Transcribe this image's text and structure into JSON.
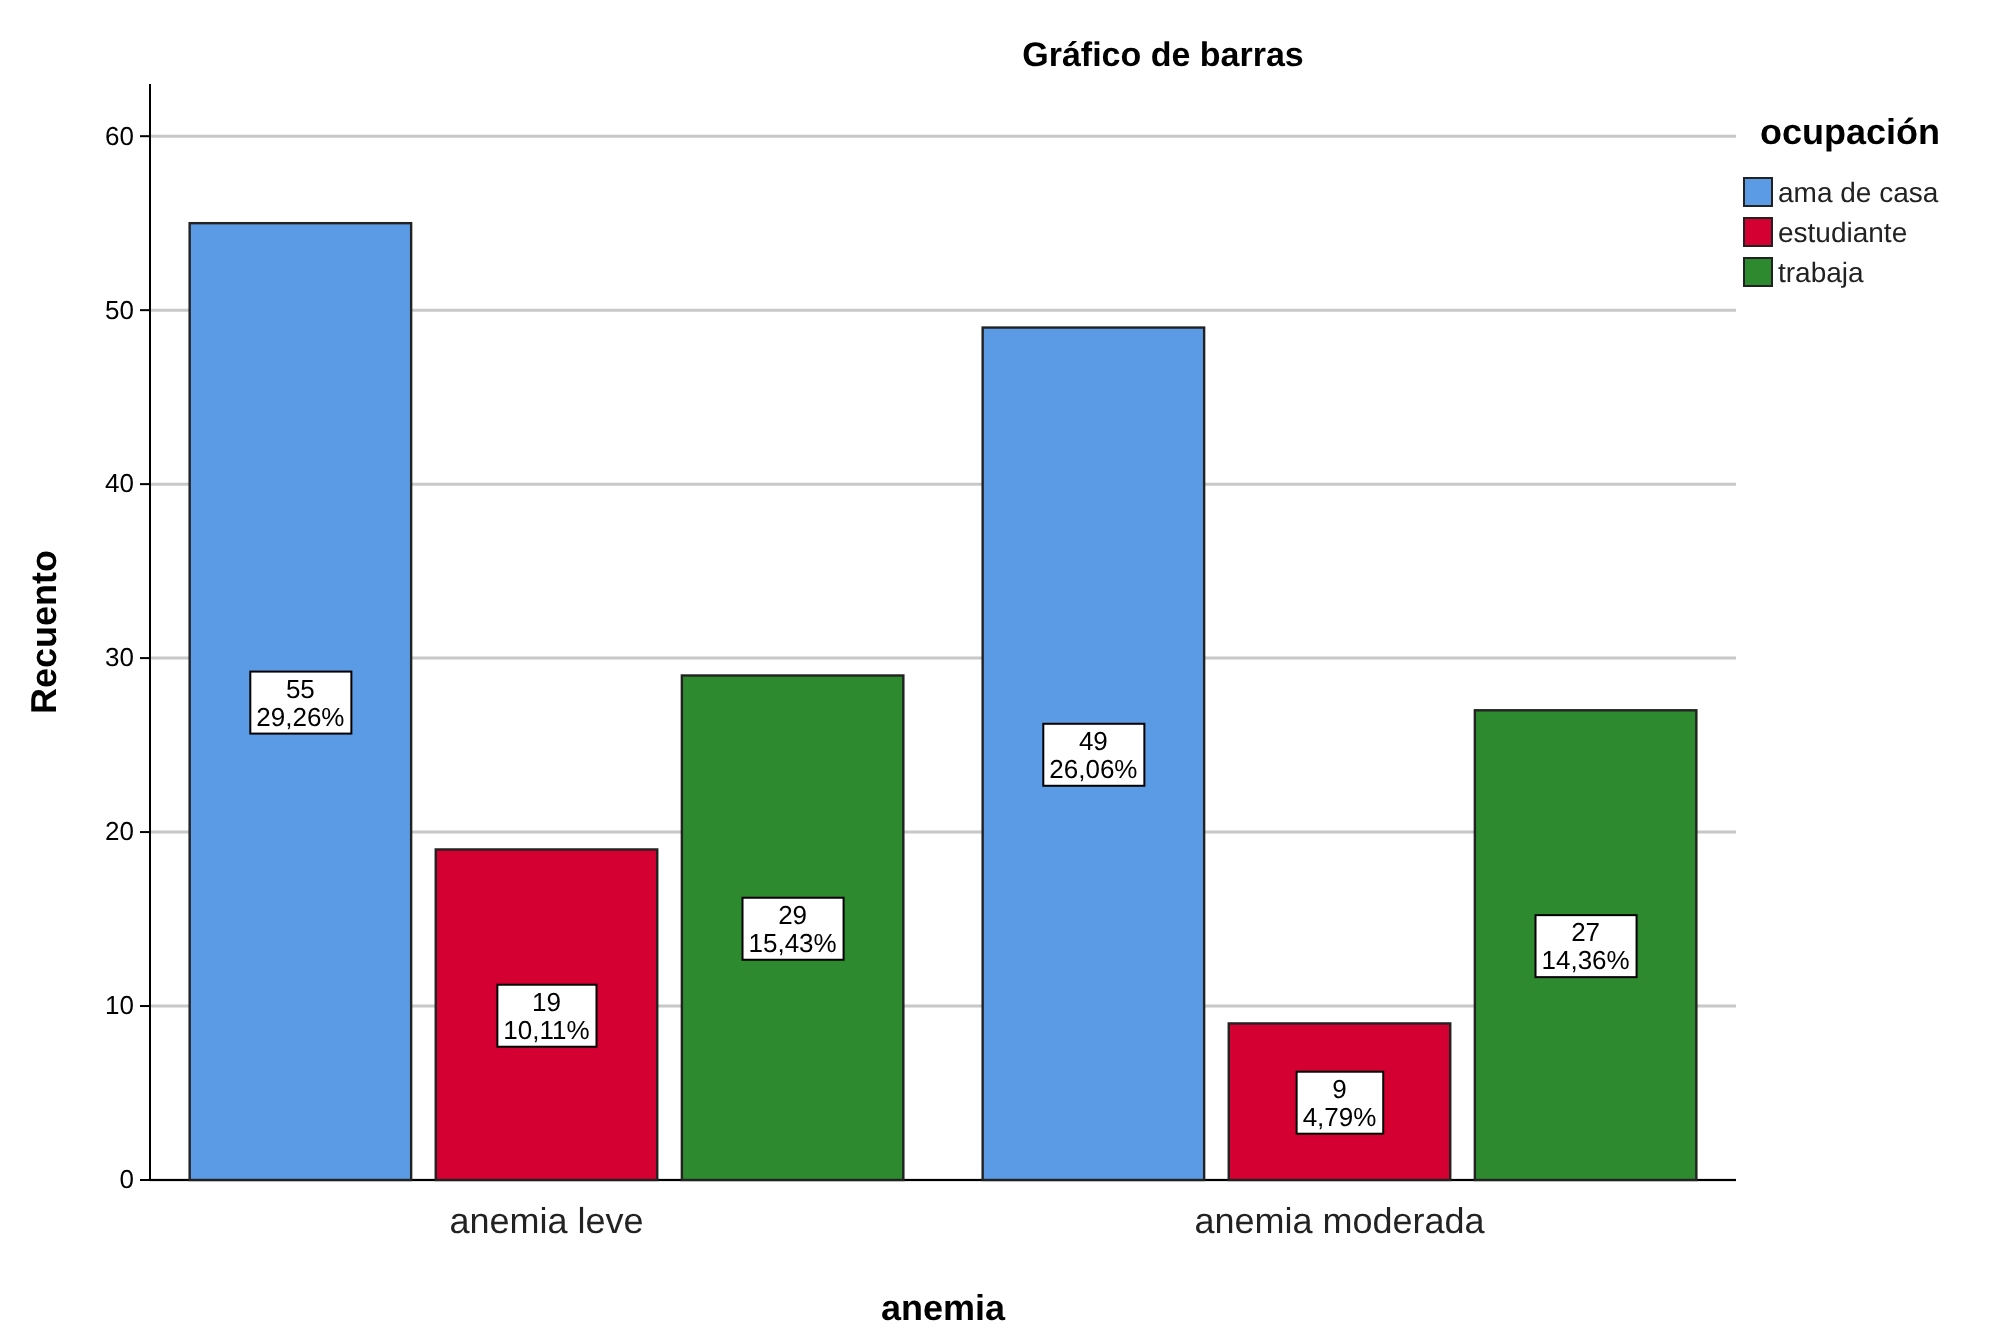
{
  "chart_data": {
    "type": "bar",
    "title": "Gráfico de barras",
    "xlabel": "anemia",
    "ylabel": "Recuento",
    "legend_title": "ocupación",
    "categories": [
      "anemia leve",
      "anemia moderada"
    ],
    "series": [
      {
        "name": "ama de casa",
        "color": "#5b9be5",
        "values": [
          55,
          49
        ],
        "value_labels": [
          "55\n29,26%",
          "49\n26,06%"
        ]
      },
      {
        "name": "estudiante",
        "color": "#d40032",
        "values": [
          19,
          9
        ],
        "value_labels": [
          "19\n10,11%",
          "9\n4,79%"
        ]
      },
      {
        "name": "trabaja",
        "color": "#2e8a2e",
        "values": [
          29,
          27
        ],
        "value_labels": [
          "29\n15,43%",
          "27\n14,36%"
        ]
      }
    ],
    "ylim": [
      0,
      63
    ],
    "yticks": [
      0,
      10,
      20,
      30,
      40,
      50,
      60
    ],
    "grid": "y",
    "legend": "top right"
  }
}
